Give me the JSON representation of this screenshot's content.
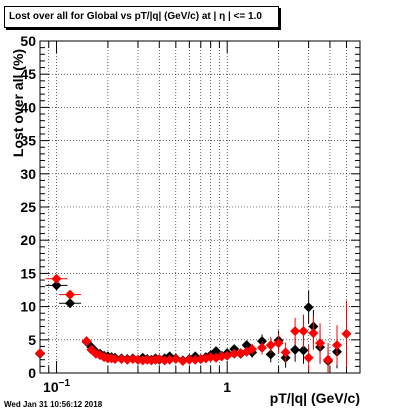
{
  "canvas": {
    "title": "Lost over all for Global vs pT/|q| (GeV/c) at |  η | <= 1.0",
    "footer": "Wed Jan 31 10:56:12 2018"
  },
  "chart_data": {
    "type": "scatter",
    "title": "Lost over all for Global vs pT/|q| (GeV/c) at |  η | <= 1.0",
    "xlabel": "pT/|q| (GeV/c)",
    "ylabel": "Lost over all (%)",
    "xscale": "log",
    "xlim": [
      0.08,
      6.0
    ],
    "ylim": [
      0,
      50
    ],
    "x_ticks": [
      {
        "value": 0.1,
        "label": "10⁻¹"
      },
      {
        "value": 1,
        "label": "1"
      }
    ],
    "y_ticks": [
      0,
      5,
      10,
      15,
      20,
      25,
      30,
      35,
      40,
      45,
      50
    ],
    "grid": true,
    "legend": "none",
    "series": [
      {
        "color": "#000000",
        "points": [
          [
            0.08,
            2.9,
            0.3
          ],
          [
            0.1,
            13.2,
            0.6
          ],
          [
            0.12,
            10.5,
            0.6
          ],
          [
            0.15,
            4.7,
            0.3
          ],
          [
            0.16,
            3.9,
            0.2
          ],
          [
            0.17,
            3.2,
            0.2
          ],
          [
            0.18,
            2.9,
            0.2
          ],
          [
            0.19,
            2.6,
            0.2
          ],
          [
            0.2,
            2.5,
            0.2
          ],
          [
            0.21,
            2.4,
            0.2
          ],
          [
            0.22,
            2.3,
            0.2
          ],
          [
            0.24,
            2.2,
            0.2
          ],
          [
            0.26,
            2.1,
            0.2
          ],
          [
            0.28,
            2.2,
            0.2
          ],
          [
            0.3,
            2.0,
            0.2
          ],
          [
            0.32,
            2.3,
            0.2
          ],
          [
            0.34,
            2.1,
            0.2
          ],
          [
            0.36,
            2.0,
            0.2
          ],
          [
            0.38,
            2.2,
            0.2
          ],
          [
            0.4,
            2.0,
            0.2
          ],
          [
            0.43,
            2.2,
            0.2
          ],
          [
            0.46,
            2.5,
            0.2
          ],
          [
            0.5,
            2.2,
            0.2
          ],
          [
            0.55,
            1.9,
            0.2
          ],
          [
            0.6,
            2.1,
            0.2
          ],
          [
            0.65,
            2.5,
            0.3
          ],
          [
            0.7,
            2.1,
            0.3
          ],
          [
            0.75,
            2.4,
            0.3
          ],
          [
            0.8,
            2.7,
            0.3
          ],
          [
            0.86,
            3.3,
            0.4
          ],
          [
            0.93,
            2.6,
            0.4
          ],
          [
            1.0,
            3.0,
            0.5
          ],
          [
            1.1,
            3.6,
            0.5
          ],
          [
            1.2,
            2.9,
            0.6
          ],
          [
            1.3,
            4.2,
            0.7
          ],
          [
            1.4,
            3.1,
            0.8
          ],
          [
            1.6,
            4.8,
            1.0
          ],
          [
            1.8,
            2.8,
            1.2
          ],
          [
            2.0,
            4.9,
            1.5
          ],
          [
            2.2,
            2.3,
            1.5
          ],
          [
            2.5,
            3.5,
            1.8
          ],
          [
            2.8,
            3.4,
            2.0
          ],
          [
            3.0,
            9.9,
            2.5
          ],
          [
            3.2,
            7.0,
            2.5
          ],
          [
            3.5,
            3.9,
            2.5
          ],
          [
            3.9,
            1.8,
            2.0
          ],
          [
            4.4,
            3.2,
            2.5
          ]
        ]
      },
      {
        "color": "#ff0000",
        "points": [
          [
            0.08,
            3.0,
            0.3
          ],
          [
            0.1,
            14.2,
            0.6
          ],
          [
            0.12,
            11.8,
            0.6
          ],
          [
            0.15,
            4.8,
            0.3
          ],
          [
            0.16,
            3.5,
            0.2
          ],
          [
            0.17,
            2.9,
            0.2
          ],
          [
            0.18,
            2.7,
            0.2
          ],
          [
            0.19,
            2.4,
            0.2
          ],
          [
            0.2,
            2.2,
            0.2
          ],
          [
            0.21,
            2.2,
            0.2
          ],
          [
            0.22,
            2.1,
            0.2
          ],
          [
            0.24,
            2.1,
            0.2
          ],
          [
            0.26,
            2.0,
            0.2
          ],
          [
            0.28,
            2.1,
            0.2
          ],
          [
            0.3,
            2.0,
            0.2
          ],
          [
            0.32,
            1.9,
            0.2
          ],
          [
            0.34,
            2.0,
            0.2
          ],
          [
            0.36,
            1.9,
            0.2
          ],
          [
            0.38,
            2.0,
            0.2
          ],
          [
            0.4,
            2.1,
            0.2
          ],
          [
            0.43,
            1.9,
            0.2
          ],
          [
            0.46,
            2.0,
            0.2
          ],
          [
            0.5,
            2.1,
            0.2
          ],
          [
            0.55,
            1.8,
            0.2
          ],
          [
            0.6,
            2.0,
            0.2
          ],
          [
            0.65,
            2.0,
            0.3
          ],
          [
            0.7,
            2.1,
            0.3
          ],
          [
            0.75,
            2.2,
            0.3
          ],
          [
            0.8,
            2.4,
            0.3
          ],
          [
            0.86,
            2.3,
            0.4
          ],
          [
            0.93,
            2.5,
            0.4
          ],
          [
            1.0,
            2.6,
            0.5
          ],
          [
            1.1,
            2.9,
            0.5
          ],
          [
            1.2,
            3.0,
            0.6
          ],
          [
            1.3,
            3.2,
            0.7
          ],
          [
            1.4,
            3.6,
            0.8
          ],
          [
            1.6,
            3.8,
            1.0
          ],
          [
            1.8,
            4.2,
            1.2
          ],
          [
            2.0,
            4.5,
            1.5
          ],
          [
            2.2,
            3.1,
            1.5
          ],
          [
            2.5,
            6.3,
            2.0
          ],
          [
            2.8,
            6.3,
            2.5
          ],
          [
            3.0,
            2.3,
            2.0
          ],
          [
            3.2,
            6.0,
            2.5
          ],
          [
            3.5,
            4.5,
            3.0
          ],
          [
            3.9,
            2.0,
            2.5
          ],
          [
            4.4,
            4.2,
            3.0
          ],
          [
            5.0,
            5.9,
            5.0
          ]
        ]
      }
    ]
  }
}
